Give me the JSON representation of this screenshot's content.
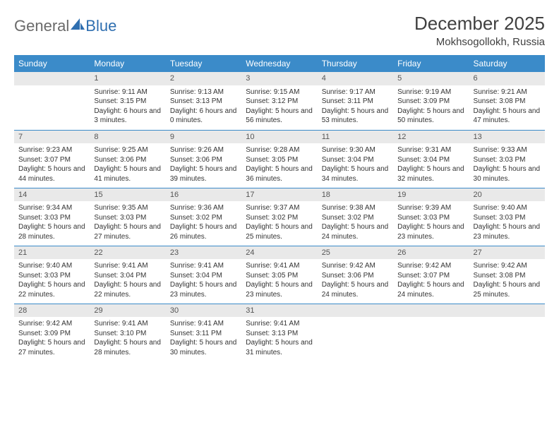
{
  "brand": {
    "part1": "General",
    "part2": "Blue"
  },
  "title": "December 2025",
  "location": "Mokhsogollokh, Russia",
  "colors": {
    "header_bg": "#3b8bc9",
    "header_text": "#ffffff",
    "daynum_bg": "#e9e9e9",
    "daynum_text": "#555555",
    "body_text": "#333333",
    "brand_gray": "#6a6a6a",
    "brand_blue": "#2f6fb0",
    "row_border": "#3b8bc9",
    "page_bg": "#ffffff"
  },
  "fonts": {
    "base_family": "Arial",
    "cell_size_pt": 10,
    "header_size_pt": 12,
    "title_size_pt": 26
  },
  "weekdays": [
    "Sunday",
    "Monday",
    "Tuesday",
    "Wednesday",
    "Thursday",
    "Friday",
    "Saturday"
  ],
  "weeks": [
    [
      null,
      {
        "n": "1",
        "sr": "Sunrise: 9:11 AM",
        "ss": "Sunset: 3:15 PM",
        "dl": "Daylight: 6 hours and 3 minutes."
      },
      {
        "n": "2",
        "sr": "Sunrise: 9:13 AM",
        "ss": "Sunset: 3:13 PM",
        "dl": "Daylight: 6 hours and 0 minutes."
      },
      {
        "n": "3",
        "sr": "Sunrise: 9:15 AM",
        "ss": "Sunset: 3:12 PM",
        "dl": "Daylight: 5 hours and 56 minutes."
      },
      {
        "n": "4",
        "sr": "Sunrise: 9:17 AM",
        "ss": "Sunset: 3:11 PM",
        "dl": "Daylight: 5 hours and 53 minutes."
      },
      {
        "n": "5",
        "sr": "Sunrise: 9:19 AM",
        "ss": "Sunset: 3:09 PM",
        "dl": "Daylight: 5 hours and 50 minutes."
      },
      {
        "n": "6",
        "sr": "Sunrise: 9:21 AM",
        "ss": "Sunset: 3:08 PM",
        "dl": "Daylight: 5 hours and 47 minutes."
      }
    ],
    [
      {
        "n": "7",
        "sr": "Sunrise: 9:23 AM",
        "ss": "Sunset: 3:07 PM",
        "dl": "Daylight: 5 hours and 44 minutes."
      },
      {
        "n": "8",
        "sr": "Sunrise: 9:25 AM",
        "ss": "Sunset: 3:06 PM",
        "dl": "Daylight: 5 hours and 41 minutes."
      },
      {
        "n": "9",
        "sr": "Sunrise: 9:26 AM",
        "ss": "Sunset: 3:06 PM",
        "dl": "Daylight: 5 hours and 39 minutes."
      },
      {
        "n": "10",
        "sr": "Sunrise: 9:28 AM",
        "ss": "Sunset: 3:05 PM",
        "dl": "Daylight: 5 hours and 36 minutes."
      },
      {
        "n": "11",
        "sr": "Sunrise: 9:30 AM",
        "ss": "Sunset: 3:04 PM",
        "dl": "Daylight: 5 hours and 34 minutes."
      },
      {
        "n": "12",
        "sr": "Sunrise: 9:31 AM",
        "ss": "Sunset: 3:04 PM",
        "dl": "Daylight: 5 hours and 32 minutes."
      },
      {
        "n": "13",
        "sr": "Sunrise: 9:33 AM",
        "ss": "Sunset: 3:03 PM",
        "dl": "Daylight: 5 hours and 30 minutes."
      }
    ],
    [
      {
        "n": "14",
        "sr": "Sunrise: 9:34 AM",
        "ss": "Sunset: 3:03 PM",
        "dl": "Daylight: 5 hours and 28 minutes."
      },
      {
        "n": "15",
        "sr": "Sunrise: 9:35 AM",
        "ss": "Sunset: 3:03 PM",
        "dl": "Daylight: 5 hours and 27 minutes."
      },
      {
        "n": "16",
        "sr": "Sunrise: 9:36 AM",
        "ss": "Sunset: 3:02 PM",
        "dl": "Daylight: 5 hours and 26 minutes."
      },
      {
        "n": "17",
        "sr": "Sunrise: 9:37 AM",
        "ss": "Sunset: 3:02 PM",
        "dl": "Daylight: 5 hours and 25 minutes."
      },
      {
        "n": "18",
        "sr": "Sunrise: 9:38 AM",
        "ss": "Sunset: 3:02 PM",
        "dl": "Daylight: 5 hours and 24 minutes."
      },
      {
        "n": "19",
        "sr": "Sunrise: 9:39 AM",
        "ss": "Sunset: 3:03 PM",
        "dl": "Daylight: 5 hours and 23 minutes."
      },
      {
        "n": "20",
        "sr": "Sunrise: 9:40 AM",
        "ss": "Sunset: 3:03 PM",
        "dl": "Daylight: 5 hours and 23 minutes."
      }
    ],
    [
      {
        "n": "21",
        "sr": "Sunrise: 9:40 AM",
        "ss": "Sunset: 3:03 PM",
        "dl": "Daylight: 5 hours and 22 minutes."
      },
      {
        "n": "22",
        "sr": "Sunrise: 9:41 AM",
        "ss": "Sunset: 3:04 PM",
        "dl": "Daylight: 5 hours and 22 minutes."
      },
      {
        "n": "23",
        "sr": "Sunrise: 9:41 AM",
        "ss": "Sunset: 3:04 PM",
        "dl": "Daylight: 5 hours and 23 minutes."
      },
      {
        "n": "24",
        "sr": "Sunrise: 9:41 AM",
        "ss": "Sunset: 3:05 PM",
        "dl": "Daylight: 5 hours and 23 minutes."
      },
      {
        "n": "25",
        "sr": "Sunrise: 9:42 AM",
        "ss": "Sunset: 3:06 PM",
        "dl": "Daylight: 5 hours and 24 minutes."
      },
      {
        "n": "26",
        "sr": "Sunrise: 9:42 AM",
        "ss": "Sunset: 3:07 PM",
        "dl": "Daylight: 5 hours and 24 minutes."
      },
      {
        "n": "27",
        "sr": "Sunrise: 9:42 AM",
        "ss": "Sunset: 3:08 PM",
        "dl": "Daylight: 5 hours and 25 minutes."
      }
    ],
    [
      {
        "n": "28",
        "sr": "Sunrise: 9:42 AM",
        "ss": "Sunset: 3:09 PM",
        "dl": "Daylight: 5 hours and 27 minutes."
      },
      {
        "n": "29",
        "sr": "Sunrise: 9:41 AM",
        "ss": "Sunset: 3:10 PM",
        "dl": "Daylight: 5 hours and 28 minutes."
      },
      {
        "n": "30",
        "sr": "Sunrise: 9:41 AM",
        "ss": "Sunset: 3:11 PM",
        "dl": "Daylight: 5 hours and 30 minutes."
      },
      {
        "n": "31",
        "sr": "Sunrise: 9:41 AM",
        "ss": "Sunset: 3:13 PM",
        "dl": "Daylight: 5 hours and 31 minutes."
      },
      null,
      null,
      null
    ]
  ]
}
